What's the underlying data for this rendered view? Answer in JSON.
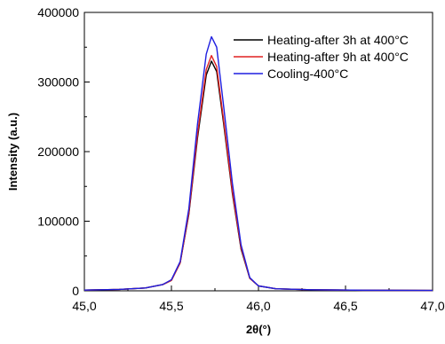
{
  "chart_data": {
    "type": "line",
    "xlabel": "2θ(°)",
    "ylabel": "Intensity (a.u.)",
    "xlim": [
      45.0,
      47.0
    ],
    "ylim": [
      0,
      400000
    ],
    "x_ticks": [
      45.0,
      45.5,
      46.0,
      46.5,
      47.0
    ],
    "x_tick_labels": [
      "45,0",
      "45,5",
      "46,0",
      "46,5",
      "47,0"
    ],
    "y_ticks": [
      0,
      100000,
      200000,
      300000,
      400000
    ],
    "y_tick_labels": [
      "0",
      "100000",
      "200000",
      "300000",
      "400000"
    ],
    "grid": false,
    "legend_position": "top-right",
    "series": [
      {
        "name": "Heating-after 3h at 400°C",
        "color": "#000000",
        "points": [
          [
            45.0,
            1000
          ],
          [
            45.2,
            2000
          ],
          [
            45.35,
            4000
          ],
          [
            45.45,
            9000
          ],
          [
            45.5,
            15000
          ],
          [
            45.55,
            40000
          ],
          [
            45.6,
            110000
          ],
          [
            45.65,
            220000
          ],
          [
            45.7,
            310000
          ],
          [
            45.73,
            330000
          ],
          [
            45.76,
            315000
          ],
          [
            45.8,
            240000
          ],
          [
            45.85,
            140000
          ],
          [
            45.9,
            60000
          ],
          [
            45.95,
            18000
          ],
          [
            46.0,
            7000
          ],
          [
            46.1,
            3000
          ],
          [
            46.3,
            1500
          ],
          [
            46.6,
            800
          ],
          [
            47.0,
            500
          ]
        ]
      },
      {
        "name": "Heating-after 9h at 400°C",
        "color": "#e02020",
        "points": [
          [
            45.0,
            1000
          ],
          [
            45.2,
            2000
          ],
          [
            45.35,
            4000
          ],
          [
            45.45,
            9000
          ],
          [
            45.5,
            15000
          ],
          [
            45.55,
            40000
          ],
          [
            45.6,
            112000
          ],
          [
            45.65,
            225000
          ],
          [
            45.7,
            318000
          ],
          [
            45.73,
            338000
          ],
          [
            45.76,
            322000
          ],
          [
            45.8,
            245000
          ],
          [
            45.85,
            143000
          ],
          [
            45.9,
            62000
          ],
          [
            45.95,
            18000
          ],
          [
            46.0,
            7000
          ],
          [
            46.1,
            3000
          ],
          [
            46.3,
            1500
          ],
          [
            46.6,
            800
          ],
          [
            47.0,
            500
          ]
        ]
      },
      {
        "name": "Cooling-400°C",
        "color": "#1f1fe0",
        "points": [
          [
            45.0,
            1000
          ],
          [
            45.2,
            2000
          ],
          [
            45.35,
            4000
          ],
          [
            45.45,
            9000
          ],
          [
            45.5,
            16000
          ],
          [
            45.55,
            42000
          ],
          [
            45.6,
            118000
          ],
          [
            45.65,
            240000
          ],
          [
            45.7,
            340000
          ],
          [
            45.73,
            365000
          ],
          [
            45.76,
            350000
          ],
          [
            45.8,
            265000
          ],
          [
            45.85,
            155000
          ],
          [
            45.9,
            66000
          ],
          [
            45.95,
            19000
          ],
          [
            46.0,
            7000
          ],
          [
            46.1,
            3000
          ],
          [
            46.3,
            1500
          ],
          [
            46.6,
            800
          ],
          [
            47.0,
            500
          ]
        ]
      }
    ]
  }
}
